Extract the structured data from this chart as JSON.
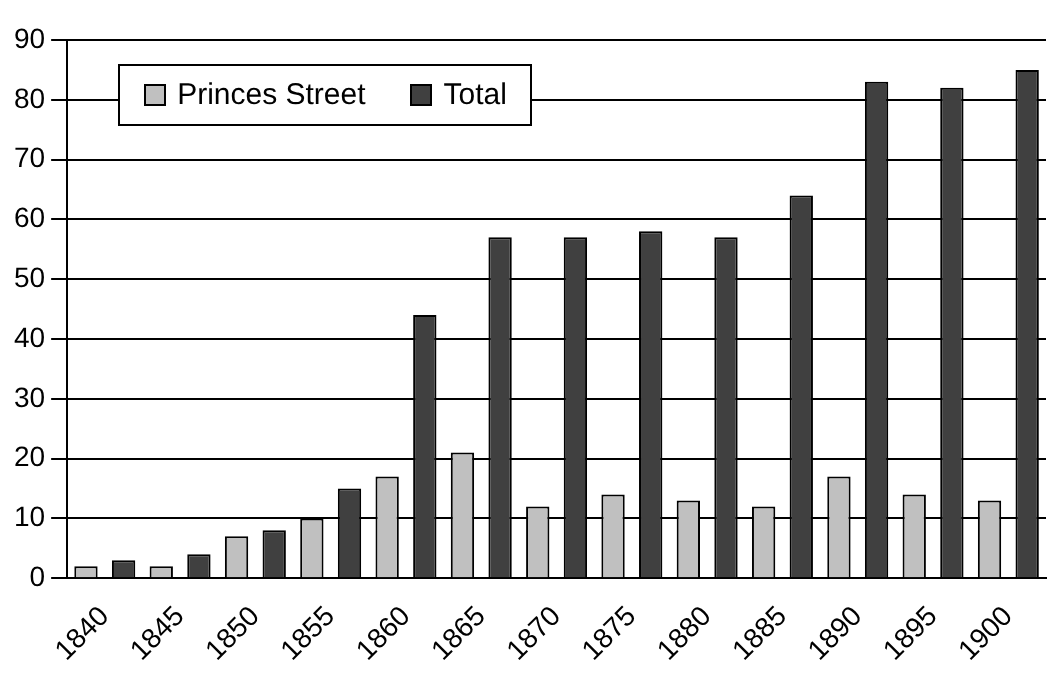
{
  "chart_data": {
    "type": "bar",
    "categories": [
      "1840",
      "1845",
      "1850",
      "1855",
      "1860",
      "1865",
      "1870",
      "1875",
      "1880",
      "1885",
      "1890",
      "1895",
      "1900"
    ],
    "series": [
      {
        "name": "Princes Street",
        "color": "#c0c0c0",
        "values": [
          2,
          2,
          7,
          10,
          17,
          21,
          12,
          14,
          13,
          12,
          17,
          14,
          13
        ]
      },
      {
        "name": "Total",
        "color": "#404040",
        "values": [
          3,
          4,
          8,
          15,
          44,
          57,
          57,
          58,
          57,
          64,
          83,
          82,
          85
        ]
      }
    ],
    "ylim": [
      0,
      90
    ],
    "yticks": [
      0,
      10,
      20,
      30,
      40,
      50,
      60,
      70,
      80,
      90
    ],
    "grid": "y",
    "legend": "top left"
  }
}
